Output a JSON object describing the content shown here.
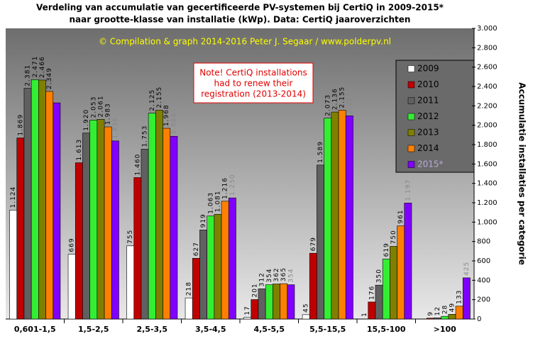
{
  "chart_data": {
    "type": "bar",
    "title": "Verdeling van accumulatie van gecertificeerde PV-systemen bij CertiQ in 2009-2015*",
    "subtitle": "naar grootte-klasse van installatie (kWp).  Data: CertiQ jaaroverzichten",
    "credit": "© Compilation  & graph 2014-2016 Peter J. Segaar / www.polderpv.nl",
    "note": [
      "Note! CertiQ installations",
      "had to renew their",
      "registration (2013-2014)"
    ],
    "y_label": "Accumulatie installaties per categorie",
    "categories": [
      "0,601-1,5",
      "1,5-2,5",
      "2,5-3,5",
      "3,5-4,5",
      "4,5-5,5",
      "5,5-15,5",
      "15,5-100",
      ">100"
    ],
    "series": [
      {
        "name": "2009",
        "color": "#ffffff",
        "values": [
          1124,
          669,
          755,
          218,
          17,
          45,
          1,
          null
        ],
        "value_labels": [
          "1.124",
          "669",
          "755",
          "218",
          "17",
          "45",
          "1",
          null
        ]
      },
      {
        "name": "2010",
        "color": "#c00000",
        "values": [
          1869,
          1613,
          1460,
          627,
          201,
          679,
          176,
          9
        ],
        "value_labels": [
          "1.869",
          "1.613",
          "1.460",
          "627",
          "201",
          "679",
          "176",
          "9"
        ]
      },
      {
        "name": "2011",
        "color": "#606060",
        "values": [
          2381,
          1920,
          1753,
          919,
          312,
          1589,
          350,
          12
        ],
        "value_labels": [
          "2.381",
          "1.920",
          "1.753",
          "919",
          "312",
          "1.589",
          "350",
          "12"
        ]
      },
      {
        "name": "2012",
        "color": "#33ee33",
        "values": [
          2471,
          2053,
          2125,
          1063,
          354,
          2073,
          619,
          28
        ],
        "value_labels": [
          "2.471",
          "2.053",
          "2.125",
          "1.063",
          "354",
          "2.073",
          "619",
          "28"
        ]
      },
      {
        "name": "2013",
        "color": "#808000",
        "values": [
          2466,
          2061,
          2155,
          1081,
          362,
          2136,
          750,
          49
        ],
        "value_labels": [
          "2.466",
          "2.061",
          "2.155",
          "1.081",
          "362",
          "2.136",
          "750",
          "49"
        ]
      },
      {
        "name": "2014",
        "color": "#ff8000",
        "values": [
          2349,
          1983,
          1968,
          1216,
          365,
          2155,
          961,
          133
        ],
        "value_labels": [
          "2.349",
          "1.983",
          "1.968",
          "1.216",
          "365",
          "2.155",
          "961",
          "133"
        ]
      },
      {
        "name": "2015*",
        "color": "#8000ff",
        "values": [
          2231,
          1838,
          1886,
          1250,
          354,
          2097,
          1197,
          425
        ],
        "value_labels": [
          "2.231",
          "1.838",
          "1.886",
          "1.250",
          "354",
          "2.097",
          "1.197",
          "425"
        ]
      }
    ],
    "ylim": [
      0,
      3000
    ],
    "yticks": [
      0,
      200,
      400,
      600,
      800,
      {
        "value": 1000,
        "label": "1.000"
      },
      {
        "value": 1200,
        "label": "1.200"
      },
      {
        "value": 1400,
        "label": "1.400"
      },
      {
        "value": 1600,
        "label": "1.600"
      },
      {
        "value": 1800,
        "label": "1.800"
      },
      {
        "value": 2000,
        "label": "2.000"
      },
      {
        "value": 2200,
        "label": "2.200"
      },
      {
        "value": 2400,
        "label": "2.400"
      },
      {
        "value": 2600,
        "label": "2.600"
      },
      {
        "value": 2800,
        "label": "2.800"
      },
      {
        "value": 3000,
        "label": "3.000"
      }
    ],
    "grid": false
  }
}
